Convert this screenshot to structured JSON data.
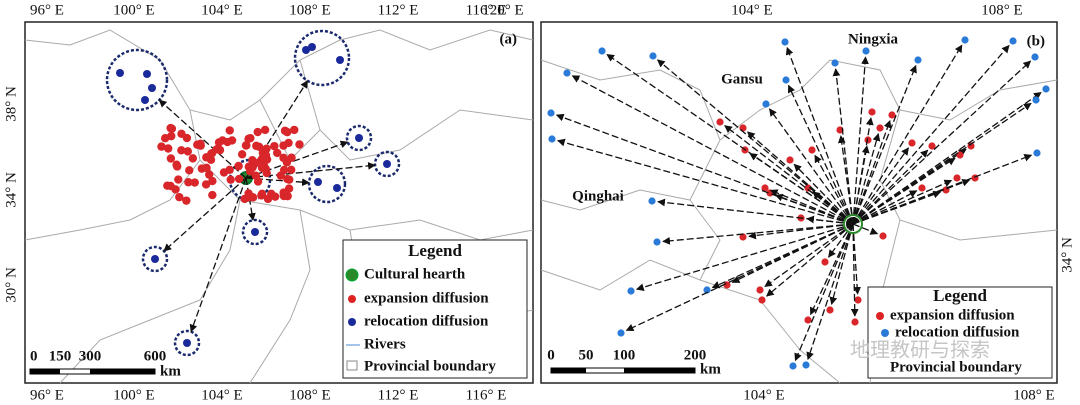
{
  "panels": [
    {
      "label": "(a)",
      "top_ticks": [
        "96° E",
        "100° E",
        "104° E",
        "108° E",
        "112° E",
        "116° E",
        "120° E"
      ],
      "bottom_ticks": [
        "96° E",
        "100° E",
        "104° E",
        "108° E",
        "112° E",
        "116° E"
      ],
      "left_ticks": [
        "38° N",
        "34° N",
        "30° N"
      ],
      "legend": {
        "title": "Legend",
        "items": [
          "Cultural hearth",
          "expansion diffusion",
          "relocation diffusion",
          "Rivers",
          "Provincial boundary"
        ]
      },
      "scale": {
        "ticks": [
          "0",
          "150",
          "300",
          "600"
        ],
        "unit": "km"
      }
    },
    {
      "label": "(b)",
      "top_ticks": [
        "104° E",
        "108° E"
      ],
      "bottom_ticks": [
        "104° E",
        "108° E"
      ],
      "right_ticks": [
        "34° N"
      ],
      "place_labels": [
        "Ningxia",
        "Gansu",
        "Qinghai"
      ],
      "legend": {
        "title": "Legend",
        "items": [
          "expansion diffusion",
          "relocation diffusion",
          "Provincial boundary"
        ]
      },
      "scale": {
        "ticks": [
          "0",
          "50",
          "100",
          "200"
        ],
        "unit": "km"
      }
    }
  ],
  "watermark": "地理教研与探索"
}
